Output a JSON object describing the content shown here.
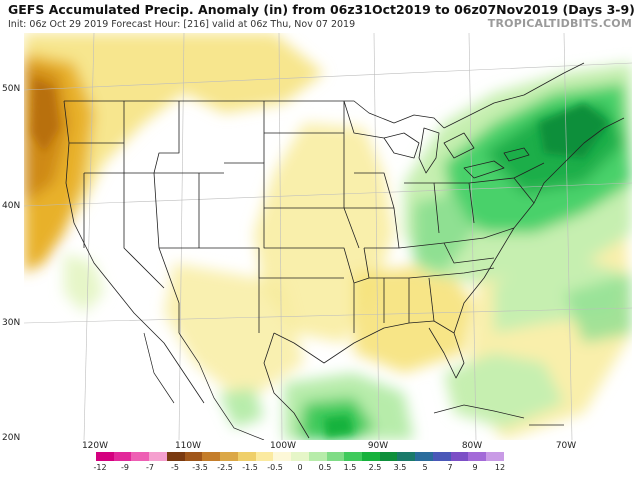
{
  "header": {
    "title": "GEFS Accumulated Precip. Anomaly (in) from 06z31Oct2019 to 06z07Nov2019 (Days 3-9)",
    "subtitle": "Init: 06z Oct 29 2019   Forecast Hour: [216]   valid at 06z Thu, Nov 07 2019",
    "brand": "TROPICALTIDBITS.COM"
  },
  "axes": {
    "lat_labels": [
      "50N",
      "40N",
      "30N",
      "20N"
    ],
    "lon_labels": [
      "120W",
      "110W",
      "100W",
      "90W",
      "80W",
      "70W"
    ]
  },
  "colorbar": {
    "ticks": [
      "-12",
      "-9",
      "-7",
      "-5",
      "-3.5",
      "-2.5",
      "-1.5",
      "-0.5",
      "0",
      "0.5",
      "1.5",
      "2.5",
      "3.5",
      "5",
      "7",
      "9",
      "12"
    ],
    "colors": [
      "#d4007f",
      "#e2289a",
      "#ee5fb4",
      "#f5a0cf",
      "#7a3a10",
      "#a0561a",
      "#c47d2a",
      "#dba746",
      "#efcf6a",
      "#fbeaa0",
      "#fdf8d8",
      "#e6f6c8",
      "#b7ecaa",
      "#7fdc86",
      "#3fca5c",
      "#16b23c",
      "#0e8f3b",
      "#1a7a6a",
      "#2a6c9c",
      "#4a58b8",
      "#7c4fc6",
      "#a36ad8",
      "#c99be6"
    ]
  },
  "colors": {
    "dry_orange": "#e2a420",
    "dry_light": "#f6e27a",
    "wet_light": "#c6efb0",
    "wet_green": "#4ad16a",
    "wet_dark": "#169a46"
  }
}
